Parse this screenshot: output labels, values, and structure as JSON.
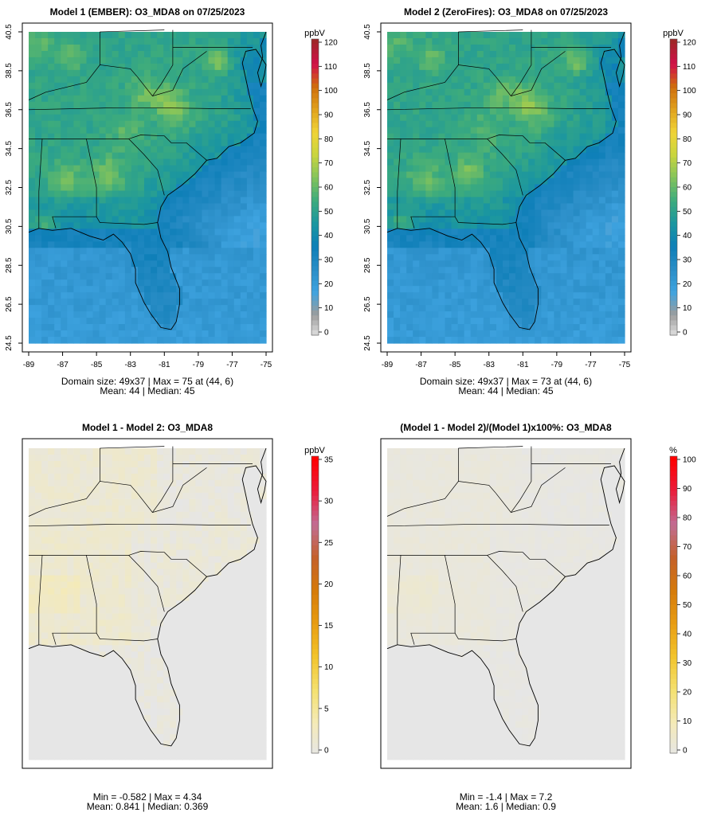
{
  "colors": {
    "conc_ramp": [
      "#e6e6e6",
      "#9c9c9c",
      "#3ea3e0",
      "#2a8dc6",
      "#0e7fb8",
      "#1b96a0",
      "#3cab7d",
      "#82c35c",
      "#c8d53e",
      "#f0d437",
      "#e0a21e",
      "#cf6e0c",
      "#d10f4a",
      "#a02628"
    ],
    "diff_ramp": [
      "#e6e6e6",
      "#f4eab7",
      "#f4e06e",
      "#f2c42c",
      "#e89d12",
      "#d57a0a",
      "#c4602a",
      "#c16d94",
      "#ea1d3c",
      "#ff0000"
    ],
    "sea": "#3da2de"
  },
  "panels": [
    {
      "id": "p1",
      "title": "Model 1 (EMBER): O3_MDA8 on 07/25/2023",
      "stat_line1": "Domain size: 49x37 | Max = 75 at (44, 6)",
      "stat_line2": "Mean: 44 |  Median: 45"
    },
    {
      "id": "p2",
      "title": "Model 2 (ZeroFires): O3_MDA8 on 07/25/2023",
      "stat_line1": "Domain size: 49x37 | Max = 73 at (44, 6)",
      "stat_line2": "Mean: 44 |  Median: 45"
    },
    {
      "id": "p3",
      "title": "Model 1 - Model 2: O3_MDA8",
      "stat_line1": "Min = -0.582 | Max = 4.34",
      "stat_line2": "Mean: 0.841 |  Median: 0.369"
    },
    {
      "id": "p4",
      "title": "(Model 1 - Model 2)/(Model 1)x100%: O3_MDA8",
      "stat_line1": "Min = -1.4 | Max = 7.2",
      "stat_line2": "Mean: 1.6 |  Median: 0.9"
    }
  ],
  "chart_data": [
    {
      "type": "heatmap",
      "title": "Model 1 (EMBER): O3_MDA8 on 07/25/2023",
      "xlabel": "",
      "ylabel": "",
      "xlim": [
        -89,
        -75
      ],
      "ylim": [
        24.5,
        40.5
      ],
      "x_ticks": [
        "-89",
        "-87",
        "-85",
        "-83",
        "-81",
        "-79",
        "-77",
        "-75"
      ],
      "y_ticks": [
        "24.5",
        "26.5",
        "28.5",
        "30.5",
        "32.5",
        "34.5",
        "36.5",
        "38.5",
        "40.5"
      ],
      "colorbar": {
        "unit": "ppbV",
        "range": [
          0,
          120
        ],
        "ticks": [
          "0",
          "10",
          "20",
          "30",
          "40",
          "50",
          "60",
          "70",
          "80",
          "90",
          "100",
          "110",
          "120"
        ]
      },
      "grid": [
        49,
        37
      ],
      "max": 75,
      "max_at": [
        44,
        6
      ],
      "mean": 44,
      "median": 45
    },
    {
      "type": "heatmap",
      "title": "Model 2 (ZeroFires): O3_MDA8 on 07/25/2023",
      "xlabel": "",
      "ylabel": "",
      "xlim": [
        -89,
        -75
      ],
      "ylim": [
        24.5,
        40.5
      ],
      "x_ticks": [
        "-89",
        "-87",
        "-85",
        "-83",
        "-81",
        "-79",
        "-77",
        "-75"
      ],
      "y_ticks": [
        "24.5",
        "26.5",
        "28.5",
        "30.5",
        "32.5",
        "34.5",
        "36.5",
        "38.5",
        "40.5"
      ],
      "colorbar": {
        "unit": "ppbV",
        "range": [
          0,
          120
        ],
        "ticks": [
          "0",
          "10",
          "20",
          "30",
          "40",
          "50",
          "60",
          "70",
          "80",
          "90",
          "100",
          "110",
          "120"
        ]
      },
      "grid": [
        49,
        37
      ],
      "max": 73,
      "max_at": [
        44,
        6
      ],
      "mean": 44,
      "median": 45
    },
    {
      "type": "heatmap",
      "title": "Model 1 - Model 2: O3_MDA8",
      "xlim": [
        -89,
        -75
      ],
      "ylim": [
        24.5,
        40.5
      ],
      "colorbar": {
        "unit": "ppbV",
        "range": [
          0,
          35
        ],
        "ticks": [
          "0",
          "5",
          "10",
          "15",
          "20",
          "25",
          "30",
          "35"
        ]
      },
      "min": -0.582,
      "max": 4.34,
      "mean": 0.841,
      "median": 0.369
    },
    {
      "type": "heatmap",
      "title": "(Model 1 - Model 2)/(Model 1)x100%: O3_MDA8",
      "xlim": [
        -89,
        -75
      ],
      "ylim": [
        24.5,
        40.5
      ],
      "colorbar": {
        "unit": "%",
        "range": [
          0,
          100
        ],
        "ticks": [
          "0",
          "10",
          "20",
          "30",
          "40",
          "50",
          "60",
          "70",
          "80",
          "90",
          "100"
        ]
      },
      "min": -1.4,
      "max": 7.2,
      "mean": 1.6,
      "median": 0.9
    }
  ]
}
